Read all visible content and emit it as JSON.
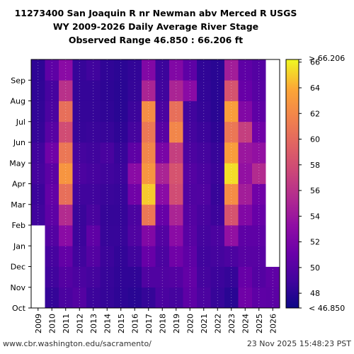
{
  "header": {
    "title_line1": "11273400 San Joaquin R nr Newman abv Merced R USGS",
    "title_line2": "WY 2009-2026 Daily Average River Stage",
    "title_line3": "Observed Range 46.850 : 66.206 ft"
  },
  "footer": {
    "source": "www.cbr.washington.edu/sacramento/",
    "timestamp": "23 Nov 2025 15:48:23 PST"
  },
  "chart_data": {
    "type": "heatmap",
    "x_categories": [
      "2009",
      "2010",
      "2011",
      "2012",
      "2013",
      "2014",
      "2015",
      "2016",
      "2017",
      "2018",
      "2019",
      "2020",
      "2021",
      "2022",
      "2023",
      "2024",
      "2025",
      "2026"
    ],
    "y_categories": [
      "Oct",
      "Nov",
      "Dec",
      "Jan",
      "Feb",
      "Mar",
      "Apr",
      "May",
      "Jun",
      "Jul",
      "Aug",
      "Sep"
    ],
    "zlim": [
      46.85,
      66.206
    ],
    "units": "ft",
    "colorbar": {
      "ticks": [
        48,
        50,
        52,
        54,
        56,
        58,
        60,
        62,
        64,
        66
      ],
      "upper_label": "> 66.206",
      "lower_label": "< 46.850"
    },
    "missing_color": "#ffffff",
    "missing_ranges": [
      {
        "year": "2009",
        "from": "Oct",
        "to": "Jan"
      },
      {
        "year": "2026",
        "from": "Dec",
        "to": "Sep"
      }
    ],
    "monthly_stage_ft": [
      {
        "year": "2009",
        "values": [
          null,
          null,
          null,
          null,
          49.0,
          48.8,
          49.2,
          49.0,
          48.5,
          48.4,
          48.3,
          48.2
        ]
      },
      {
        "year": "2010",
        "values": [
          48.5,
          49.0,
          49.3,
          50.0,
          50.5,
          50.8,
          50.4,
          51.5,
          50.2,
          49.5,
          49.3,
          50.5
        ]
      },
      {
        "year": "2011",
        "values": [
          49.5,
          50.0,
          50.8,
          53.0,
          55.5,
          60.5,
          63.0,
          61.0,
          58.0,
          60.5,
          56.0,
          53.0
        ]
      },
      {
        "year": "2012",
        "values": [
          50.0,
          49.5,
          49.0,
          48.8,
          48.7,
          49.0,
          49.6,
          49.2,
          48.6,
          48.5,
          48.5,
          48.6
        ]
      },
      {
        "year": "2013",
        "values": [
          48.8,
          49.2,
          50.0,
          50.6,
          49.4,
          49.0,
          49.3,
          49.0,
          48.7,
          48.5,
          48.5,
          49.0
        ]
      },
      {
        "year": "2014",
        "values": [
          48.5,
          48.6,
          48.8,
          48.6,
          48.5,
          48.7,
          49.0,
          49.4,
          48.6,
          48.3,
          48.2,
          48.3
        ]
      },
      {
        "year": "2015",
        "values": [
          48.2,
          48.3,
          48.4,
          48.6,
          48.5,
          48.6,
          48.8,
          48.6,
          48.2,
          48.0,
          48.0,
          48.1
        ]
      },
      {
        "year": "2016",
        "values": [
          48.0,
          48.3,
          49.0,
          49.8,
          49.5,
          51.5,
          53.0,
          50.5,
          49.2,
          48.8,
          48.5,
          48.4
        ]
      },
      {
        "year": "2017",
        "values": [
          48.5,
          49.8,
          51.0,
          52.5,
          61.0,
          65.0,
          63.0,
          62.0,
          61.0,
          62.5,
          55.0,
          52.5
        ]
      },
      {
        "year": "2018",
        "values": [
          49.5,
          49.8,
          49.6,
          50.0,
          51.0,
          53.0,
          55.0,
          52.0,
          50.2,
          49.5,
          49.0,
          48.8
        ]
      },
      {
        "year": "2019",
        "values": [
          49.2,
          50.0,
          51.5,
          53.0,
          55.0,
          58.0,
          58.5,
          57.0,
          62.0,
          60.5,
          55.0,
          52.5
        ]
      },
      {
        "year": "2020",
        "values": [
          50.5,
          50.8,
          50.5,
          50.2,
          50.0,
          49.8,
          50.0,
          49.6,
          49.2,
          49.0,
          53.0,
          50.5
        ]
      },
      {
        "year": "2021",
        "values": [
          49.6,
          49.2,
          49.0,
          49.2,
          49.4,
          49.8,
          49.5,
          49.2,
          48.8,
          48.5,
          48.4,
          48.3
        ]
      },
      {
        "year": "2022",
        "values": [
          48.6,
          48.8,
          49.2,
          49.5,
          48.8,
          48.6,
          48.8,
          48.6,
          48.2,
          48.0,
          48.0,
          48.0
        ]
      },
      {
        "year": "2023",
        "values": [
          48.0,
          48.5,
          49.6,
          53.5,
          58.5,
          62.5,
          65.5,
          63.5,
          61.0,
          63.5,
          58.5,
          54.5
        ]
      },
      {
        "year": "2024",
        "values": [
          51.5,
          51.0,
          50.2,
          50.5,
          52.5,
          54.5,
          53.5,
          54.0,
          57.0,
          52.5,
          51.0,
          50.5
        ]
      },
      {
        "year": "2025",
        "values": [
          50.5,
          50.0,
          50.2,
          50.5,
          51.0,
          51.5,
          55.5,
          53.5,
          51.5,
          50.6,
          50.2,
          50.0
        ]
      },
      {
        "year": "2026",
        "values": [
          50.4,
          50.6,
          null,
          null,
          null,
          null,
          null,
          null,
          null,
          null,
          null,
          null
        ]
      }
    ],
    "colors": {
      "low": "#0d0887",
      "mid_low": "#6a00a8",
      "mid": "#b12a90",
      "mid_high": "#e16462",
      "high_orange": "#fca636",
      "high": "#f0f921"
    }
  }
}
